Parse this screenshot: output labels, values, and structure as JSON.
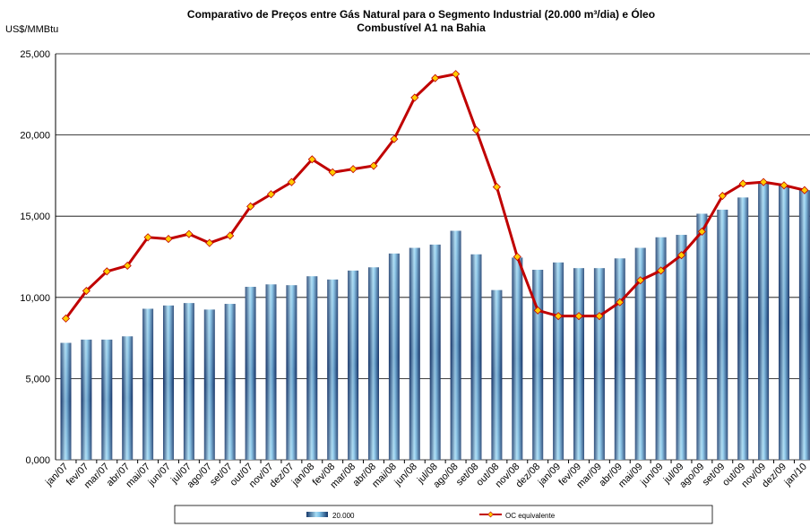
{
  "chart_data": {
    "type": "bar_line",
    "title": [
      "Comparativo de Preços entre Gás Natural para o Segmento Industrial (20.000 m³/dia) e Óleo",
      "Combustível A1 na Bahia"
    ],
    "y_label": "US$/MMBtu",
    "categories": [
      "jan/07",
      "fev/07",
      "mar/07",
      "abr/07",
      "mai/07",
      "jun/07",
      "jul/07",
      "ago/07",
      "set/07",
      "out/07",
      "nov/07",
      "dez/07",
      "jan/08",
      "fev/08",
      "mar/08",
      "abr/08",
      "mai/08",
      "jun/08",
      "jul/08",
      "ago/08",
      "set/08",
      "out/08",
      "nov/08",
      "dez/08",
      "jan/09",
      "fev/09",
      "mar/09",
      "abr/09",
      "mai/09",
      "jun/09",
      "jul/09",
      "ago/09",
      "set/09",
      "out/09",
      "nov/09",
      "dez/09",
      "jan/10"
    ],
    "series": [
      {
        "name": "20.000",
        "type": "bar",
        "color": "#3a8fc8",
        "values": [
          7.2,
          7.4,
          7.4,
          7.6,
          9.3,
          9.5,
          9.65,
          9.25,
          9.6,
          10.65,
          10.8,
          10.75,
          11.3,
          11.1,
          11.65,
          11.85,
          12.7,
          13.05,
          13.25,
          14.1,
          12.65,
          10.45,
          12.45,
          11.7,
          12.15,
          11.8,
          11.8,
          12.4,
          13.05,
          13.7,
          13.85,
          15.15,
          15.4,
          16.15,
          17.1,
          16.9,
          16.6
        ]
      },
      {
        "name": "OC equivalente",
        "type": "line",
        "color": "#c00000",
        "marker_color": "#ffcc00",
        "values": [
          8.7,
          10.4,
          11.6,
          11.95,
          13.7,
          13.6,
          13.9,
          13.35,
          13.8,
          15.6,
          16.35,
          17.1,
          18.5,
          17.7,
          17.9,
          18.1,
          19.75,
          22.3,
          23.5,
          23.75,
          20.3,
          16.8,
          12.5,
          9.2,
          8.85,
          8.85,
          8.85,
          9.7,
          11.05,
          11.65,
          12.6,
          14.05,
          16.25,
          17.0,
          17.1,
          16.9,
          16.6
        ]
      }
    ],
    "ylim": [
      0,
      25
    ],
    "yticks": [
      {
        "value": 0,
        "label": "0,000"
      },
      {
        "value": 5,
        "label": "5,000"
      },
      {
        "value": 10,
        "label": "10,000"
      },
      {
        "value": 15,
        "label": "15,000"
      },
      {
        "value": 20,
        "label": "20,000"
      },
      {
        "value": 25,
        "label": "25,000"
      }
    ],
    "grid": true
  }
}
